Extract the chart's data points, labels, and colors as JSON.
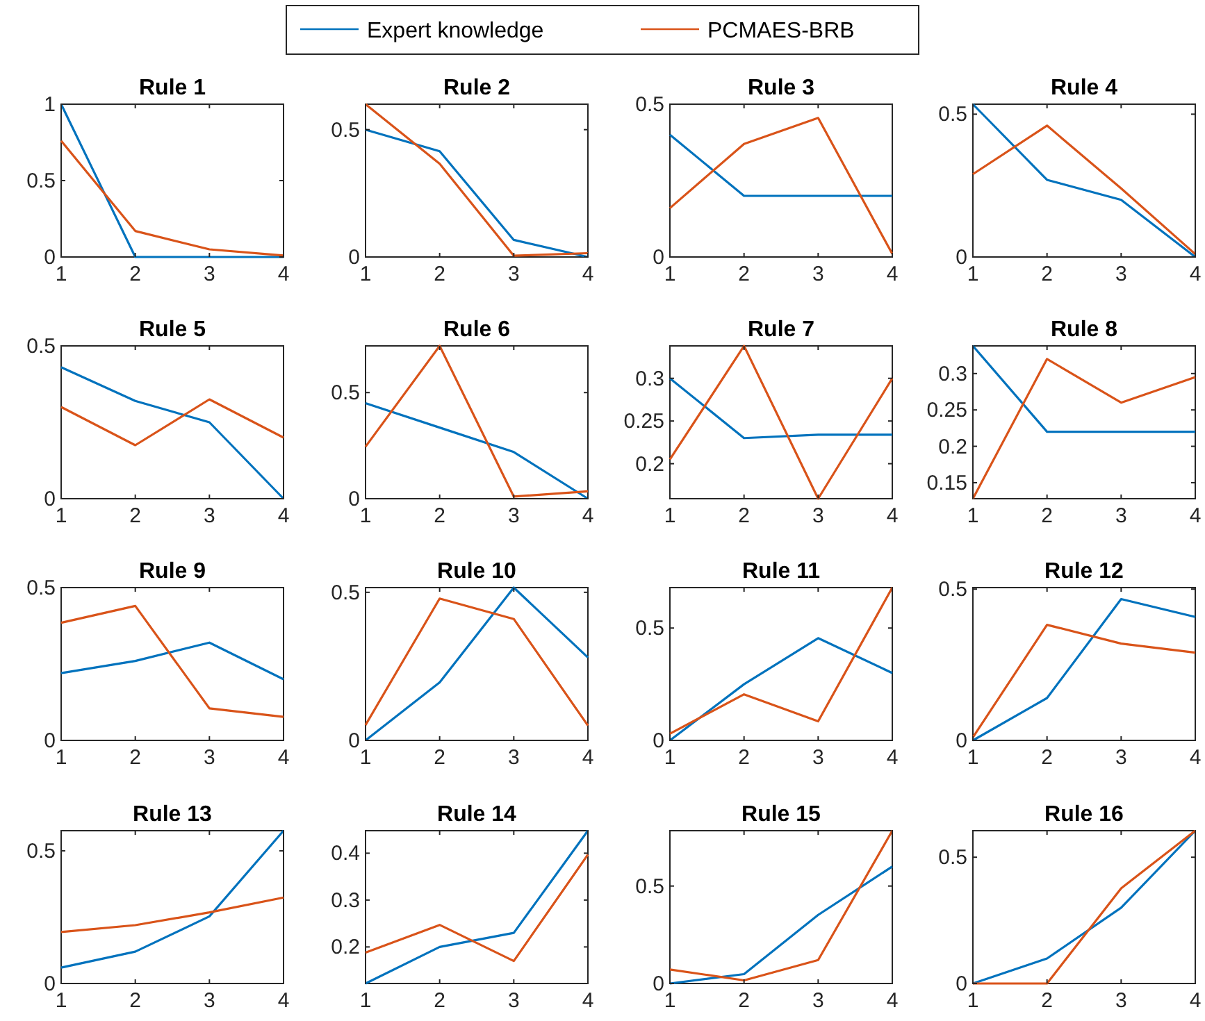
{
  "chart_data": [
    {
      "type": "line",
      "title": "Rule 1",
      "x": [
        1,
        2,
        3,
        4
      ],
      "xlim": [
        1,
        4
      ],
      "xticks": [
        1,
        2,
        3,
        4
      ],
      "ylim": [
        0,
        1
      ],
      "yticks": [
        0,
        0.5,
        1
      ],
      "legend": "top",
      "series": [
        {
          "name": "Expert knowledge",
          "color": "#0072bd",
          "values": [
            1,
            0,
            0,
            0
          ]
        },
        {
          "name": "PCMAES-BRB",
          "color": "#d95319",
          "values": [
            0.76,
            0.17,
            0.05,
            0.01
          ]
        }
      ]
    },
    {
      "type": "line",
      "title": "Rule 2",
      "x": [
        1,
        2,
        3,
        4
      ],
      "xlim": [
        1,
        4
      ],
      "xticks": [
        1,
        2,
        3,
        4
      ],
      "ylim": [
        0,
        0.6
      ],
      "yticks": [
        0,
        0.5
      ],
      "series": [
        {
          "color": "#0072bd",
          "values": [
            0.5,
            0.415,
            0.067,
            0
          ]
        },
        {
          "color": "#d95319",
          "values": [
            0.6,
            0.366,
            0.005,
            0.015
          ]
        }
      ]
    },
    {
      "type": "line",
      "title": "Rule 3",
      "x": [
        1,
        2,
        3,
        4
      ],
      "xlim": [
        1,
        4
      ],
      "xticks": [
        1,
        2,
        3,
        4
      ],
      "ylim": [
        0,
        0.5
      ],
      "yticks": [
        0,
        0.5
      ],
      "series": [
        {
          "color": "#0072bd",
          "values": [
            0.4,
            0.2,
            0.2,
            0.2
          ]
        },
        {
          "color": "#d95319",
          "values": [
            0.16,
            0.37,
            0.455,
            0.01
          ]
        }
      ]
    },
    {
      "type": "line",
      "title": "Rule 4",
      "x": [
        1,
        2,
        3,
        4
      ],
      "xlim": [
        1,
        4
      ],
      "xticks": [
        1,
        2,
        3,
        4
      ],
      "ylim": [
        0,
        0.535
      ],
      "yticks": [
        0,
        0.5
      ],
      "series": [
        {
          "color": "#0072bd",
          "values": [
            0.535,
            0.27,
            0.2,
            0
          ]
        },
        {
          "color": "#d95319",
          "values": [
            0.29,
            0.46,
            0.24,
            0.01
          ]
        }
      ]
    },
    {
      "type": "line",
      "title": "Rule 5",
      "x": [
        1,
        2,
        3,
        4
      ],
      "xlim": [
        1,
        4
      ],
      "xticks": [
        1,
        2,
        3,
        4
      ],
      "ylim": [
        0,
        0.5
      ],
      "yticks": [
        0,
        0.5
      ],
      "series": [
        {
          "color": "#0072bd",
          "values": [
            0.43,
            0.32,
            0.25,
            0
          ]
        },
        {
          "color": "#d95319",
          "values": [
            0.3,
            0.175,
            0.325,
            0.2
          ]
        }
      ]
    },
    {
      "type": "line",
      "title": "Rule 6",
      "x": [
        1,
        2,
        3,
        4
      ],
      "xlim": [
        1,
        4
      ],
      "xticks": [
        1,
        2,
        3,
        4
      ],
      "ylim": [
        0,
        0.72
      ],
      "yticks": [
        0,
        0.5
      ],
      "series": [
        {
          "color": "#0072bd",
          "values": [
            0.45,
            0.335,
            0.22,
            0
          ]
        },
        {
          "color": "#d95319",
          "values": [
            0.245,
            0.72,
            0.01,
            0.035
          ]
        }
      ]
    },
    {
      "type": "line",
      "title": "Rule 7",
      "x": [
        1,
        2,
        3,
        4
      ],
      "xlim": [
        1,
        4
      ],
      "xticks": [
        1,
        2,
        3,
        4
      ],
      "ylim": [
        0.159,
        0.338
      ],
      "yticks": [
        0.2,
        0.25,
        0.3
      ],
      "series": [
        {
          "color": "#0072bd",
          "values": [
            0.3,
            0.23,
            0.234,
            0.234
          ]
        },
        {
          "color": "#d95319",
          "values": [
            0.205,
            0.338,
            0.159,
            0.3
          ]
        }
      ]
    },
    {
      "type": "line",
      "title": "Rule 8",
      "x": [
        1,
        2,
        3,
        4
      ],
      "xlim": [
        1,
        4
      ],
      "xticks": [
        1,
        2,
        3,
        4
      ],
      "ylim": [
        0.128,
        0.338
      ],
      "yticks": [
        0.15,
        0.2,
        0.25,
        0.3
      ],
      "series": [
        {
          "color": "#0072bd",
          "values": [
            0.338,
            0.22,
            0.22,
            0.22
          ]
        },
        {
          "color": "#d95319",
          "values": [
            0.128,
            0.32,
            0.26,
            0.295
          ]
        }
      ]
    },
    {
      "type": "line",
      "title": "Rule 9",
      "x": [
        1,
        2,
        3,
        4
      ],
      "xlim": [
        1,
        4
      ],
      "xticks": [
        1,
        2,
        3,
        4
      ],
      "ylim": [
        0,
        0.5
      ],
      "yticks": [
        0,
        0.5
      ],
      "series": [
        {
          "color": "#0072bd",
          "values": [
            0.22,
            0.26,
            0.32,
            0.2
          ]
        },
        {
          "color": "#d95319",
          "values": [
            0.385,
            0.44,
            0.105,
            0.077
          ]
        }
      ]
    },
    {
      "type": "line",
      "title": "Rule 10",
      "x": [
        1,
        2,
        3,
        4
      ],
      "xlim": [
        1,
        4
      ],
      "xticks": [
        1,
        2,
        3,
        4
      ],
      "ylim": [
        0,
        0.516
      ],
      "yticks": [
        0,
        0.5
      ],
      "series": [
        {
          "color": "#0072bd",
          "values": [
            0,
            0.196,
            0.516,
            0.28
          ]
        },
        {
          "color": "#d95319",
          "values": [
            0.052,
            0.479,
            0.41,
            0.05
          ]
        }
      ]
    },
    {
      "type": "line",
      "title": "Rule 11",
      "x": [
        1,
        2,
        3,
        4
      ],
      "xlim": [
        1,
        4
      ],
      "xticks": [
        1,
        2,
        3,
        4
      ],
      "ylim": [
        0,
        0.68
      ],
      "yticks": [
        0,
        0.5
      ],
      "series": [
        {
          "color": "#0072bd",
          "values": [
            0,
            0.25,
            0.455,
            0.3
          ]
        },
        {
          "color": "#d95319",
          "values": [
            0.03,
            0.205,
            0.085,
            0.68
          ]
        }
      ]
    },
    {
      "type": "line",
      "title": "Rule 12",
      "x": [
        1,
        2,
        3,
        4
      ],
      "xlim": [
        1,
        4
      ],
      "xticks": [
        1,
        2,
        3,
        4
      ],
      "ylim": [
        0,
        0.505
      ],
      "yticks": [
        0,
        0.5
      ],
      "series": [
        {
          "color": "#0072bd",
          "values": [
            0,
            0.14,
            0.467,
            0.408
          ]
        },
        {
          "color": "#d95319",
          "values": [
            0.01,
            0.382,
            0.32,
            0.29
          ]
        }
      ]
    },
    {
      "type": "line",
      "title": "Rule 13",
      "x": [
        1,
        2,
        3,
        4
      ],
      "xlim": [
        1,
        4
      ],
      "xticks": [
        1,
        2,
        3,
        4
      ],
      "ylim": [
        0,
        0.576
      ],
      "yticks": [
        0,
        0.5
      ],
      "series": [
        {
          "color": "#0072bd",
          "values": [
            0.06,
            0.12,
            0.253,
            0.576
          ]
        },
        {
          "color": "#d95319",
          "values": [
            0.194,
            0.22,
            0.268,
            0.324
          ]
        }
      ]
    },
    {
      "type": "line",
      "title": "Rule 14",
      "x": [
        1,
        2,
        3,
        4
      ],
      "xlim": [
        1,
        4
      ],
      "xticks": [
        1,
        2,
        3,
        4
      ],
      "ylim": [
        0.122,
        0.448
      ],
      "yticks": [
        0.2,
        0.3,
        0.4
      ],
      "series": [
        {
          "color": "#0072bd",
          "values": [
            0.122,
            0.2,
            0.23,
            0.448
          ]
        },
        {
          "color": "#d95319",
          "values": [
            0.188,
            0.247,
            0.17,
            0.397
          ]
        }
      ]
    },
    {
      "type": "line",
      "title": "Rule 15",
      "x": [
        1,
        2,
        3,
        4
      ],
      "xlim": [
        1,
        4
      ],
      "xticks": [
        1,
        2,
        3,
        4
      ],
      "ylim": [
        0,
        0.784
      ],
      "yticks": [
        0,
        0.5
      ],
      "series": [
        {
          "color": "#0072bd",
          "values": [
            0,
            0.048,
            0.352,
            0.6
          ]
        },
        {
          "color": "#d95319",
          "values": [
            0.072,
            0.016,
            0.12,
            0.784
          ]
        }
      ]
    },
    {
      "type": "line",
      "title": "Rule 16",
      "x": [
        1,
        2,
        3,
        4
      ],
      "xlim": [
        1,
        4
      ],
      "xticks": [
        1,
        2,
        3,
        4
      ],
      "ylim": [
        0,
        0.605
      ],
      "yticks": [
        0,
        0.5
      ],
      "series": [
        {
          "color": "#0072bd",
          "values": [
            0,
            0.099,
            0.3,
            0.605
          ]
        },
        {
          "color": "#d95319",
          "values": [
            0,
            0,
            0.377,
            0.605
          ]
        }
      ]
    }
  ]
}
